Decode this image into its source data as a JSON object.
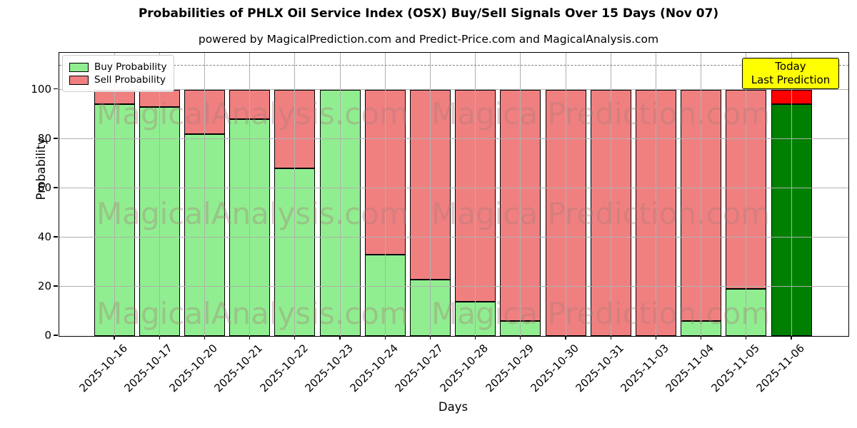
{
  "chart_data": {
    "type": "bar",
    "stacked": true,
    "title": "Probabilities of PHLX Oil Service Index (OSX) Buy/Sell Signals Over 15 Days (Nov 07)",
    "subtitle": "powered by MagicalPrediction.com and Predict-Price.com and MagicalAnalysis.com",
    "xlabel": "Days",
    "ylabel": "Probability",
    "ylim": [
      0,
      115
    ],
    "yticks": [
      0,
      20,
      40,
      60,
      80,
      100
    ],
    "grid": true,
    "legend_position": "upper left",
    "dashed_guideline_y": 110,
    "categories": [
      "2025-10-16",
      "2025-10-17",
      "2025-10-20",
      "2025-10-21",
      "2025-10-22",
      "2025-10-23",
      "2025-10-24",
      "2025-10-27",
      "2025-10-28",
      "2025-10-29",
      "2025-10-30",
      "2025-10-31",
      "2025-11-03",
      "2025-11-04",
      "2025-11-05",
      "2025-11-06"
    ],
    "series": [
      {
        "name": "Buy Probability",
        "color": "#90EE90",
        "values": [
          94,
          93,
          82,
          88,
          68,
          100,
          33,
          23,
          14,
          6,
          0,
          0,
          0,
          6,
          19,
          94
        ]
      },
      {
        "name": "Sell Probability",
        "color": "#F08080",
        "values": [
          6,
          7,
          18,
          12,
          32,
          0,
          67,
          77,
          86,
          94,
          100,
          100,
          100,
          94,
          81,
          6
        ]
      }
    ],
    "today_bar": {
      "category": "2025-11-06",
      "buy_color": "#008000",
      "sell_color": "#FF0000"
    },
    "bar_edge_color": "#000000",
    "grid_color": "#b0b0b0"
  },
  "annotation_box": {
    "line1": "Today",
    "line2": "Last Prediction",
    "bg_color": "#FFFF00",
    "border_color": "#000000"
  },
  "watermarks": {
    "left_text": "MagicalAnalysis.com",
    "right_text": "Magica Prediction.com"
  }
}
